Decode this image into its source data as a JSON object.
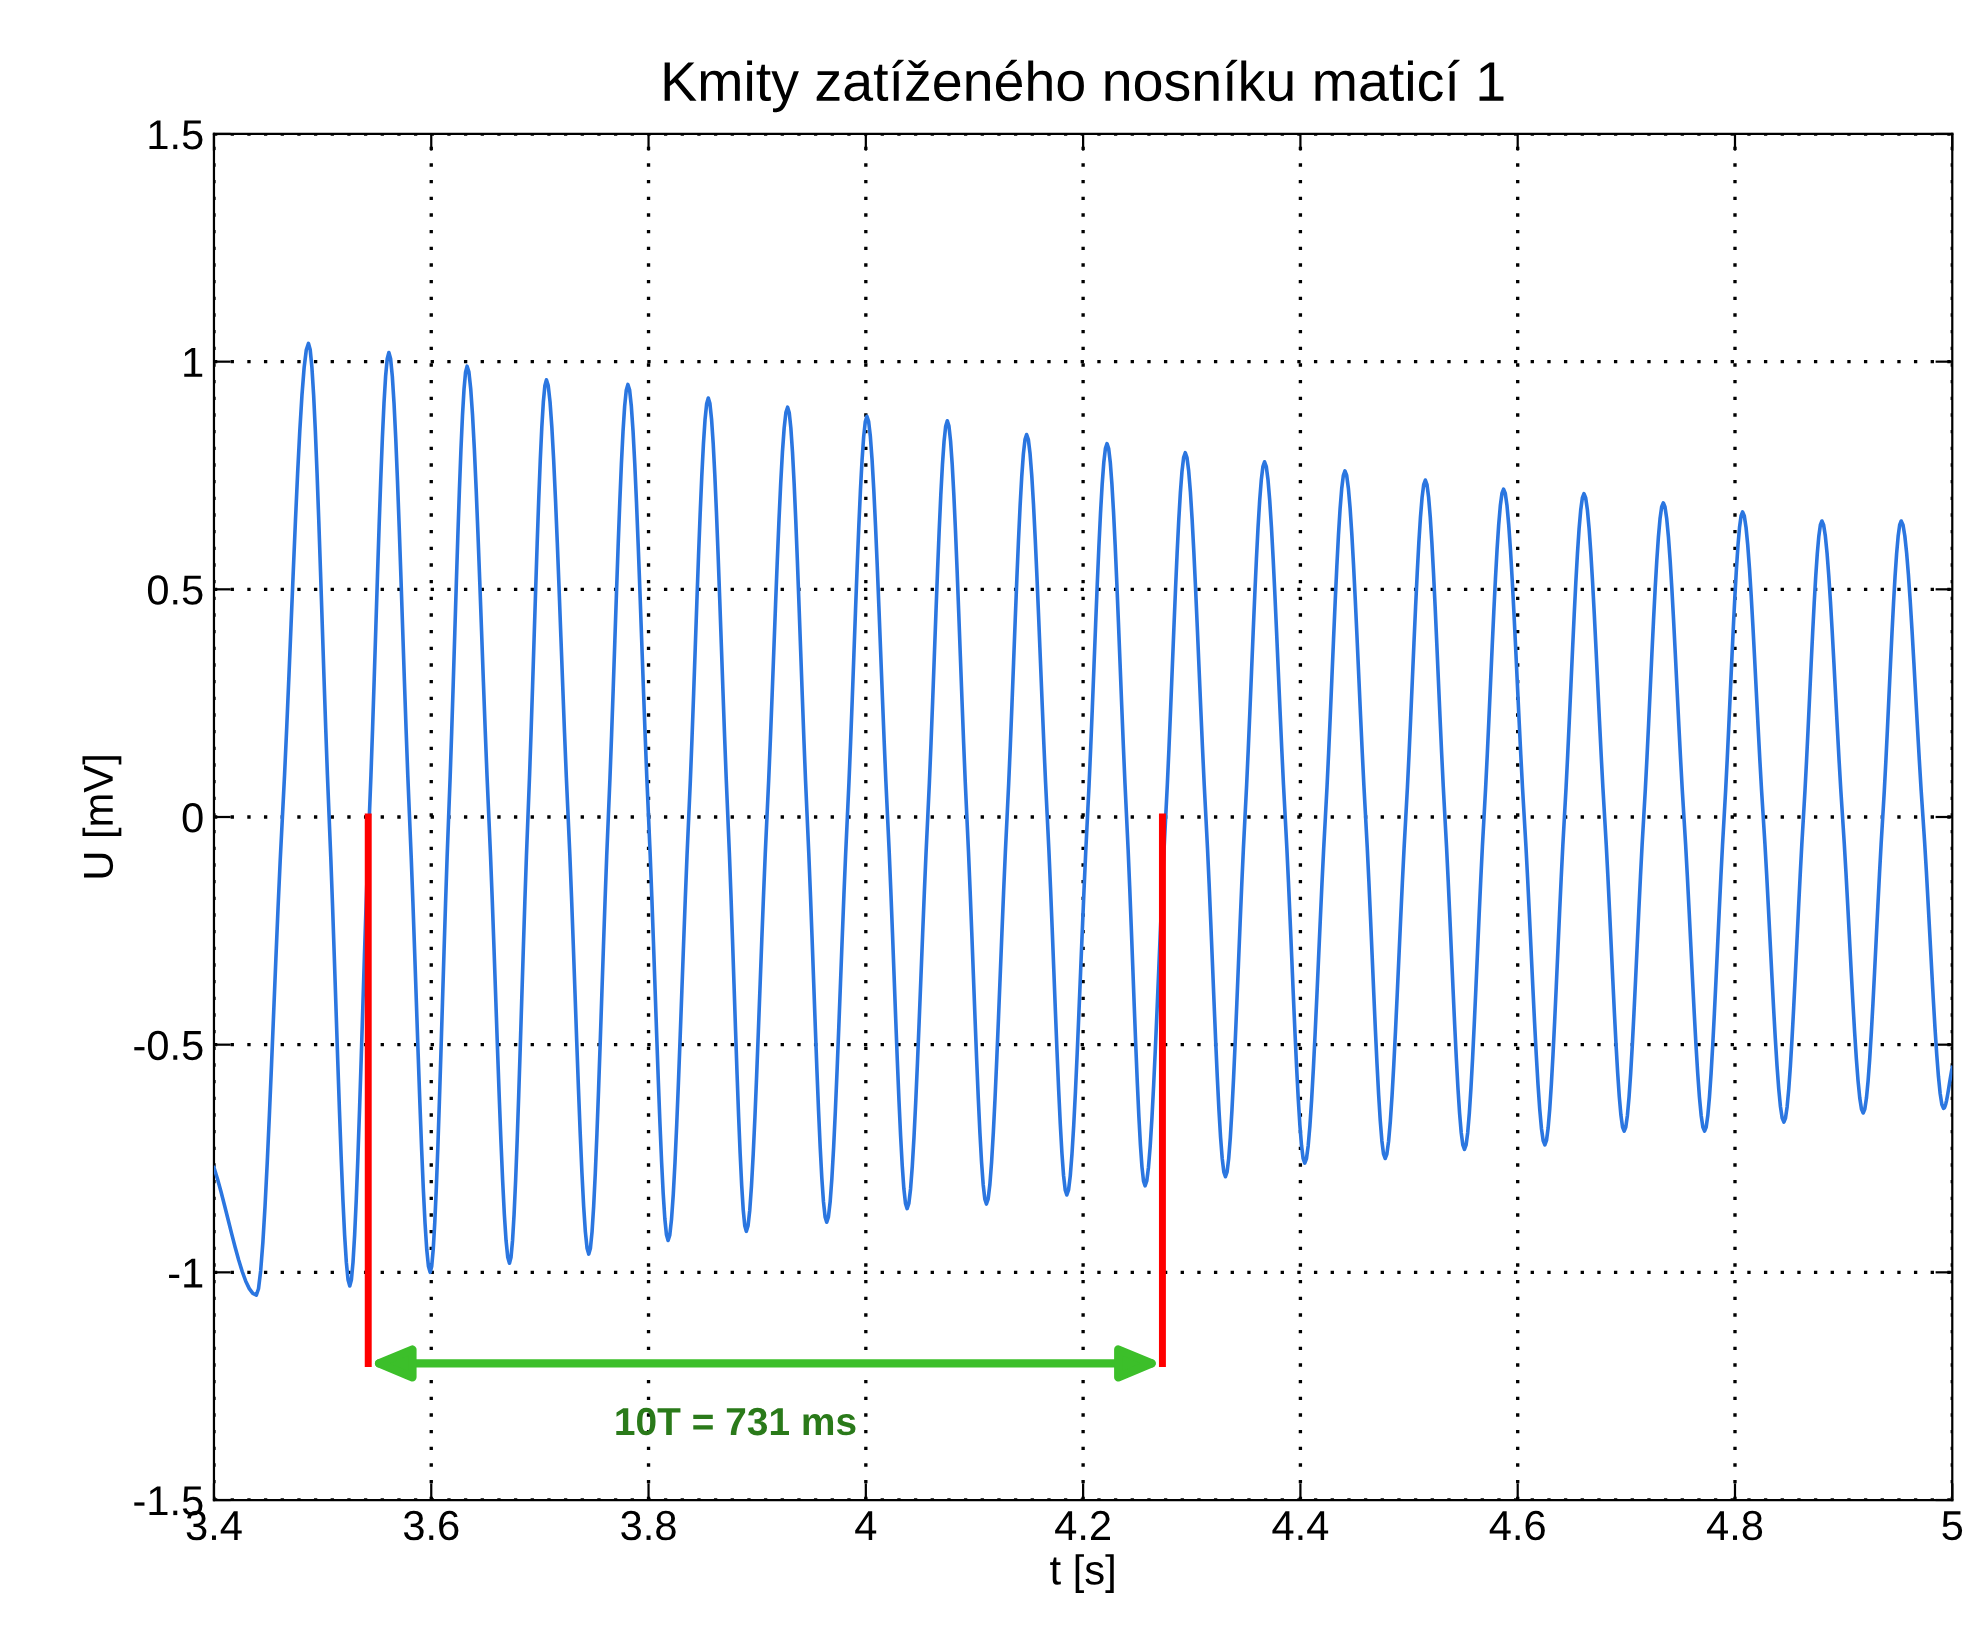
{
  "chart_data": {
    "type": "line",
    "title": "Kmity zatíženého nosníku maticí 1",
    "xlabel": "t [s]",
    "ylabel": "U [mV]",
    "xlim": [
      3.4,
      5
    ],
    "xticks": [
      3.4,
      3.6,
      3.8,
      4,
      4.2,
      4.4,
      4.6,
      4.8,
      5
    ],
    "ylim": [
      -1.5,
      1.5
    ],
    "yticks": [
      -1.5,
      -1,
      -0.5,
      0,
      0.5,
      1,
      1.5
    ],
    "grid": true,
    "marker": "none",
    "line_style": "solid",
    "series": [
      {
        "color": "#2b76e0",
        "x": [
          3.4,
          3.439,
          3.463,
          3.487,
          3.506,
          3.525,
          3.543,
          3.561,
          3.58,
          3.599,
          3.616,
          3.633,
          3.653,
          3.672,
          3.689,
          3.706,
          3.726,
          3.745,
          3.763,
          3.781,
          3.8,
          3.818,
          3.837,
          3.855,
          3.873,
          3.89,
          3.909,
          3.928,
          3.946,
          3.964,
          3.983,
          4.001,
          4.02,
          4.038,
          4.057,
          4.075,
          4.093,
          4.111,
          4.13,
          4.148,
          4.167,
          4.185,
          4.204,
          4.222,
          4.24,
          4.257,
          4.276,
          4.294,
          4.313,
          4.331,
          4.349,
          4.367,
          4.386,
          4.404,
          4.423,
          4.441,
          4.46,
          4.478,
          4.497,
          4.515,
          4.533,
          4.551,
          4.569,
          4.587,
          4.606,
          4.625,
          4.643,
          4.661,
          4.68,
          4.698,
          4.716,
          4.734,
          4.753,
          4.772,
          4.79,
          4.807,
          4.826,
          4.845,
          4.863,
          4.88,
          4.899,
          4.918,
          4.936,
          4.953,
          4.973,
          4.992,
          5.0
        ],
        "values": [
          -0.77,
          -1.05,
          0,
          1.04,
          0,
          -1.03,
          0,
          1.02,
          0,
          -1.0,
          0,
          0.99,
          0,
          -0.98,
          0,
          0.96,
          0,
          -0.96,
          0,
          0.95,
          0,
          -0.93,
          0,
          0.92,
          0,
          -0.91,
          0,
          0.9,
          0,
          -0.89,
          0,
          0.88,
          0,
          -0.86,
          0,
          0.87,
          0,
          -0.85,
          0,
          0.84,
          0,
          -0.83,
          0,
          0.82,
          0,
          -0.81,
          0,
          0.8,
          0,
          -0.79,
          0,
          0.78,
          0,
          -0.76,
          0,
          0.76,
          0,
          -0.75,
          0,
          0.74,
          0,
          -0.73,
          0,
          0.72,
          0,
          -0.72,
          0,
          0.71,
          0,
          -0.69,
          0,
          0.69,
          0,
          -0.69,
          0,
          0.67,
          0,
          -0.67,
          0,
          0.65,
          0,
          -0.65,
          0,
          0.65,
          0,
          -0.64,
          -0.55
        ]
      },
      {
        "color": "#ff0000",
        "x": [
          3.542,
          3.542
        ],
        "values": [
          0,
          -1.2
        ]
      },
      {
        "color": "#ff0000",
        "x": [
          4.273,
          4.273
        ],
        "values": [
          0,
          -1.2
        ]
      }
    ],
    "annotations": [
      "10T = 731 ms"
    ]
  }
}
